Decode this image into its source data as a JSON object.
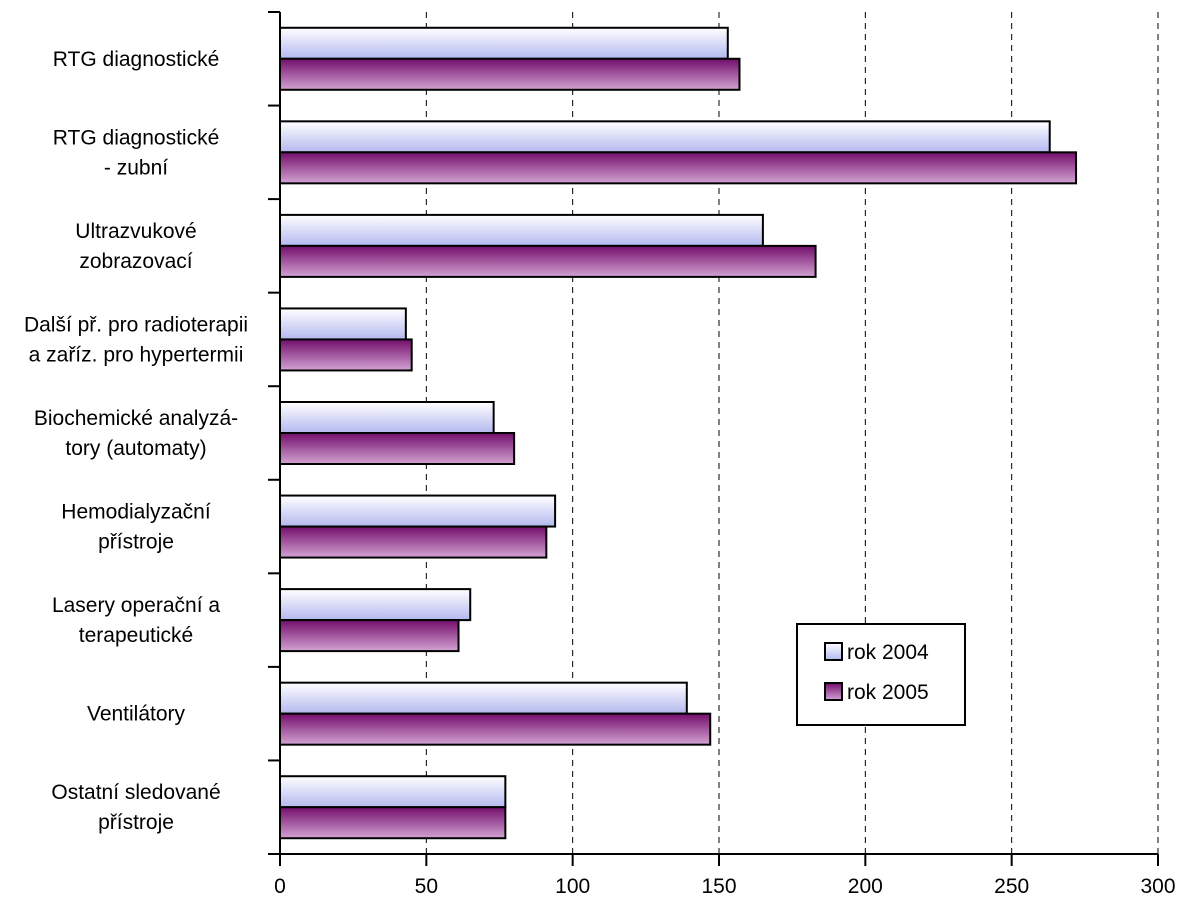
{
  "chart_data": {
    "type": "bar",
    "orientation": "horizontal",
    "categories": [
      [
        "RTG diagnostické"
      ],
      [
        "RTG diagnostické",
        "- zubní"
      ],
      [
        "Ultrazvukové",
        "zobrazovací"
      ],
      [
        "Další př. pro radioterapii",
        "a zaříz. pro hypertermii"
      ],
      [
        "Biochemické analyzá-",
        "tory (automaty)"
      ],
      [
        "Hemodialyzační",
        "přístroje"
      ],
      [
        "Lasery operační a",
        "terapeutické"
      ],
      [
        "Ventilátory"
      ],
      [
        "Ostatní sledované",
        "přístroje"
      ]
    ],
    "series": [
      {
        "name": "rok 2004",
        "values": [
          153,
          263,
          165,
          43,
          73,
          94,
          65,
          139,
          77
        ]
      },
      {
        "name": "rok 2005",
        "values": [
          157,
          272,
          183,
          45,
          80,
          91,
          61,
          147,
          77
        ]
      }
    ],
    "xlim": [
      0,
      300
    ],
    "xticks": [
      "0",
      "50",
      "100",
      "150",
      "200",
      "250",
      "300"
    ],
    "grid": "vertical dashed",
    "legend_position": "lower-right",
    "colors": {
      "rok 2004": {
        "light": "#ffffff",
        "dark": "#b3b8ef"
      },
      "rok 2005": {
        "light": "#d3a3d3",
        "dark": "#730d6b"
      }
    }
  }
}
